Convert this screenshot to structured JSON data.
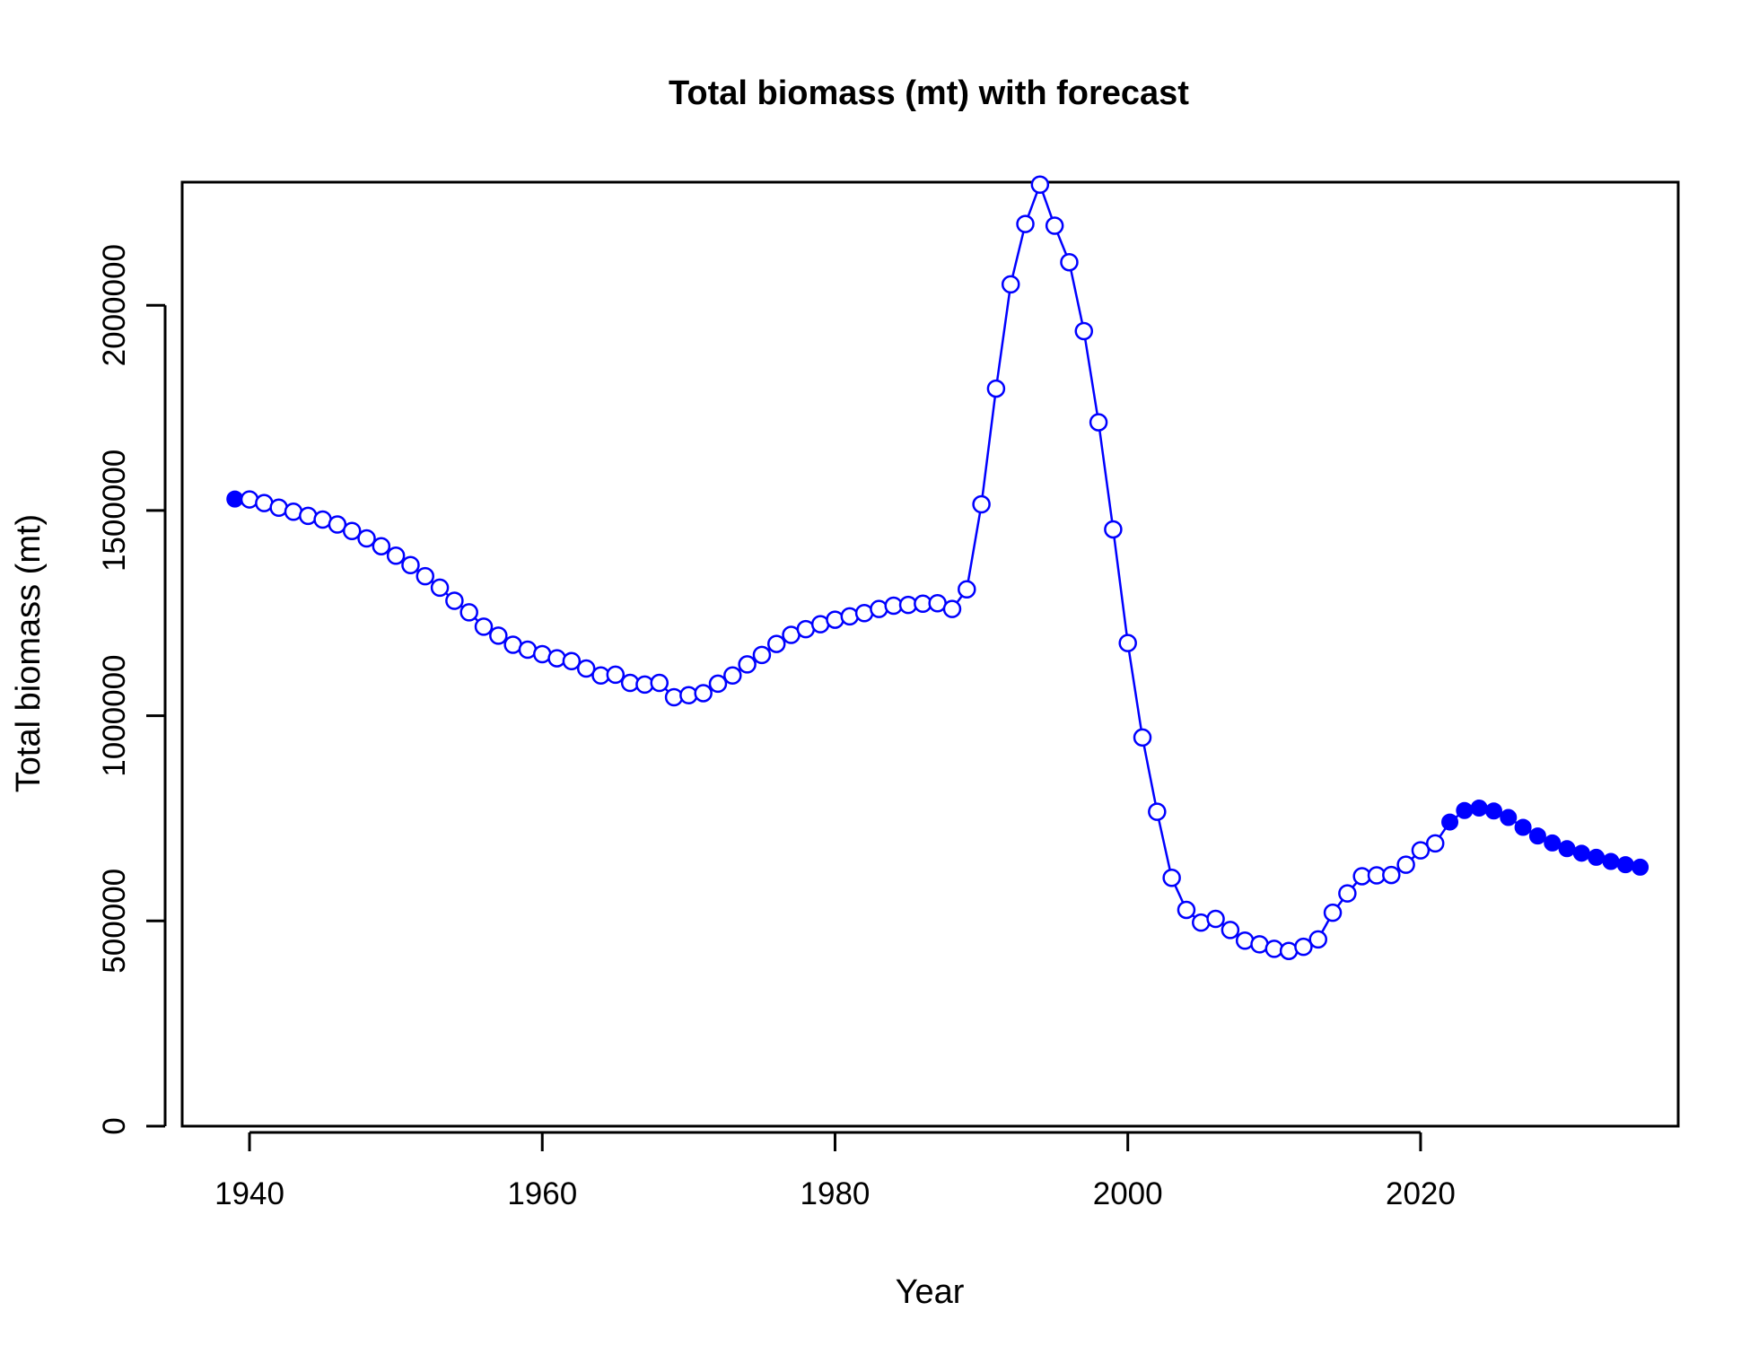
{
  "chart_data": {
    "type": "line",
    "title": "Total biomass (mt) with forecast",
    "xlabel": "Year",
    "ylabel": "Total biomass (mt)",
    "xlim": [
      1935.4,
      2037.6
    ],
    "ylim": [
      0,
      2300000
    ],
    "xticks": [
      1940,
      1960,
      1980,
      2000,
      2020
    ],
    "yticks": [
      0,
      500000,
      1000000,
      1500000,
      2000000
    ],
    "xtick_labels": [
      "1940",
      "1960",
      "1980",
      "2000",
      "2020"
    ],
    "ytick_labels": [
      "0",
      "500000",
      "1000000",
      "1500000",
      "2000000"
    ],
    "grid": false,
    "legend": "none",
    "colors": {
      "series": "#0000ff",
      "axes": "#000000"
    },
    "series": [
      {
        "x": [
          1939,
          1940,
          1941,
          1942,
          1943,
          1944,
          1945,
          1946,
          1947,
          1948,
          1949,
          1950,
          1951,
          1952,
          1953,
          1954,
          1955,
          1956,
          1957,
          1958,
          1959,
          1960,
          1961,
          1962,
          1963,
          1964,
          1965,
          1966,
          1967,
          1968,
          1969,
          1970,
          1971,
          1972,
          1973,
          1974,
          1975,
          1976,
          1977,
          1978,
          1979,
          1980,
          1981,
          1982,
          1983,
          1984,
          1985,
          1986,
          1987,
          1988,
          1989,
          1990,
          1991,
          1992,
          1993,
          1994,
          1995,
          1996,
          1997,
          1998,
          1999,
          2000,
          2001,
          2002,
          2003,
          2004,
          2005,
          2006,
          2007,
          2008,
          2009,
          2010,
          2011,
          2012,
          2013,
          2014,
          2015,
          2016,
          2017,
          2018,
          2019,
          2020,
          2021,
          2022,
          2023,
          2024,
          2025,
          2026,
          2027,
          2028,
          2029,
          2030,
          2031,
          2032,
          2033,
          2034,
          2035
        ],
        "y": [
          1528000,
          1527000,
          1518000,
          1507000,
          1497000,
          1487000,
          1478000,
          1466000,
          1450000,
          1432000,
          1413000,
          1390000,
          1367000,
          1340000,
          1312000,
          1280000,
          1252000,
          1217000,
          1195000,
          1173000,
          1161000,
          1150000,
          1140000,
          1133000,
          1115000,
          1098000,
          1100000,
          1080000,
          1076000,
          1080000,
          1045000,
          1050000,
          1055000,
          1078000,
          1098000,
          1125000,
          1148000,
          1175000,
          1197000,
          1211000,
          1223000,
          1234000,
          1242000,
          1250000,
          1260000,
          1268000,
          1270000,
          1273000,
          1274000,
          1260000,
          1308000,
          1515000,
          1797000,
          2051000,
          2198000,
          2294000,
          2194000,
          2105000,
          1937000,
          1715000,
          1454000,
          1177000,
          947000,
          766000,
          605000,
          527000,
          496000,
          505000,
          478000,
          452000,
          443000,
          432000,
          427000,
          437000,
          455000,
          520000,
          567000,
          609000,
          611000,
          612000,
          637000,
          672000,
          689000,
          741000,
          769000,
          775000,
          768000,
          752000,
          728000,
          707000,
          690000,
          676000,
          665000,
          655000,
          645000,
          637000,
          631000
        ],
        "hollow_from": 1940,
        "hollow_to": 2021
      }
    ]
  }
}
